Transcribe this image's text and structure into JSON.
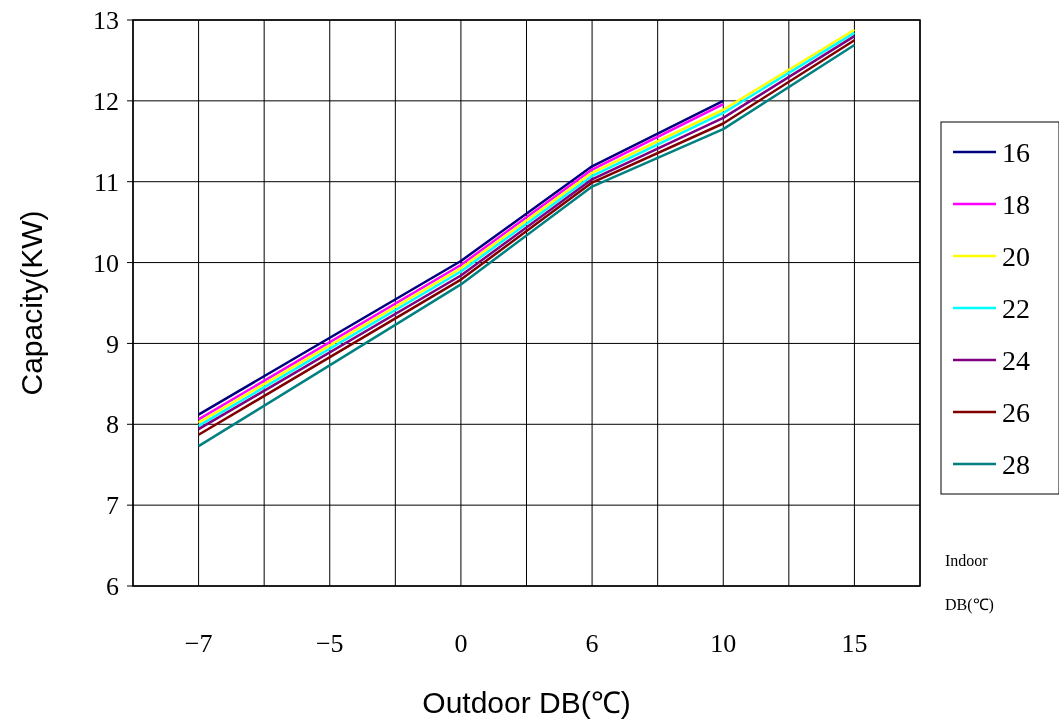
{
  "chart_data": {
    "type": "line",
    "xlabel": "Outdoor DB(℃)",
    "ylabel": "Capacity(KW)",
    "legend_title": "Indoor DB(℃)",
    "categories": [
      "−7",
      "−5",
      "0",
      "6",
      "10",
      "15"
    ],
    "ylim": [
      6,
      13
    ],
    "yticks": [
      6,
      7,
      8,
      9,
      10,
      11,
      12,
      13
    ],
    "grid": true,
    "legend": "right",
    "marker": "none",
    "line_style": "solid",
    "series": [
      {
        "name": "16",
        "color": "#000080",
        "values": [
          8.12,
          null,
          10.02,
          11.19,
          12.0,
          null
        ]
      },
      {
        "name": "18",
        "color": "#ff00ff",
        "values": [
          8.06,
          null,
          9.97,
          11.15,
          11.96,
          null
        ]
      },
      {
        "name": "20",
        "color": "#ffff00",
        "values": [
          8.02,
          null,
          9.93,
          11.11,
          11.89,
          12.88
        ]
      },
      {
        "name": "22",
        "color": "#00ffff",
        "values": [
          7.98,
          null,
          9.89,
          11.07,
          11.85,
          12.84
        ]
      },
      {
        "name": "24",
        "color": "#800080",
        "values": [
          7.94,
          null,
          9.84,
          11.03,
          11.79,
          12.8
        ]
      },
      {
        "name": "26",
        "color": "#800000",
        "values": [
          7.87,
          null,
          9.79,
          10.99,
          11.72,
          12.75
        ]
      },
      {
        "name": "28",
        "color": "#008080",
        "values": [
          7.73,
          null,
          9.73,
          10.94,
          11.65,
          12.69
        ]
      }
    ]
  }
}
